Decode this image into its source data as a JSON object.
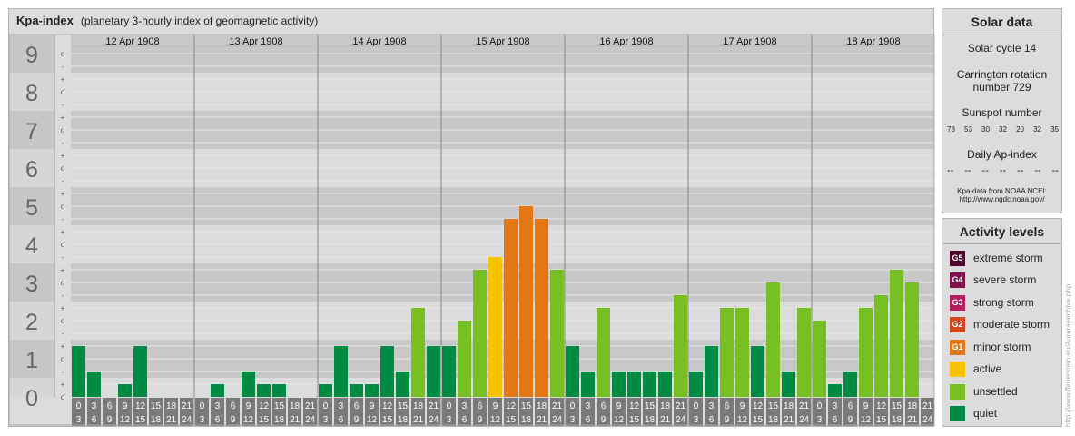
{
  "header": {
    "title": "Kpa-index",
    "subtitle": "(planetary 3-hourly index of geomagnetic activity)"
  },
  "chart_data": {
    "type": "bar",
    "title": "Kpa-index",
    "subtitle": "(planetary 3-hourly index of geomagnetic activity)",
    "ylim": [
      0,
      9
    ],
    "y_ticks": [
      "0",
      "1",
      "2",
      "3",
      "4",
      "5",
      "6",
      "7",
      "8",
      "9"
    ],
    "y_minor_labels": [
      "o",
      "+",
      "-",
      "o"
    ],
    "days": [
      "12 Apr 1908",
      "13 Apr 1908",
      "14 Apr 1908",
      "15 Apr 1908",
      "16 Apr 1908",
      "17 Apr 1908",
      "18 Apr 1908"
    ],
    "interval_start_labels": [
      "0",
      "3",
      "6",
      "9",
      "12",
      "15",
      "18",
      "21"
    ],
    "interval_end_labels": [
      "3",
      "6",
      "9",
      "12",
      "15",
      "18",
      "21",
      "24"
    ],
    "values": [
      1.333,
      0.667,
      0,
      0.333,
      1.333,
      0,
      0,
      0,
      0,
      0.333,
      0,
      0.667,
      0.333,
      0.333,
      0,
      0,
      0.333,
      1.333,
      0.333,
      0.333,
      1.333,
      0.667,
      2.333,
      1.333,
      1.333,
      2.0,
      3.333,
      3.667,
      4.667,
      5.0,
      4.667,
      3.333,
      1.333,
      0.667,
      2.333,
      0.667,
      0.667,
      0.667,
      0.667,
      2.667,
      0.667,
      1.333,
      2.333,
      2.333,
      1.333,
      3.0,
      0.667,
      2.333,
      2.0,
      0.333,
      0.667,
      2.333,
      2.667,
      3.333,
      3.0,
      0
    ],
    "levels": [
      "quiet",
      "quiet",
      "quiet",
      "quiet",
      "quiet",
      "quiet",
      "quiet",
      "quiet",
      "quiet",
      "quiet",
      "quiet",
      "quiet",
      "quiet",
      "quiet",
      "quiet",
      "quiet",
      "quiet",
      "quiet",
      "quiet",
      "quiet",
      "quiet",
      "quiet",
      "unsettled",
      "quiet",
      "quiet",
      "unsettled",
      "unsettled",
      "active",
      "minor",
      "minor",
      "minor",
      "unsettled",
      "quiet",
      "quiet",
      "unsettled",
      "quiet",
      "quiet",
      "quiet",
      "quiet",
      "unsettled",
      "quiet",
      "quiet",
      "unsettled",
      "unsettled",
      "quiet",
      "unsettled",
      "quiet",
      "unsettled",
      "unsettled",
      "quiet",
      "quiet",
      "unsettled",
      "unsettled",
      "unsettled",
      "unsettled",
      "quiet"
    ],
    "colors": {
      "quiet": "#008b45",
      "unsettled": "#77bf22",
      "active": "#f7c200",
      "minor": "#e57614",
      "moderate": "#d2461f",
      "strong": "#b21f5e",
      "severe": "#7f1248",
      "extreme": "#4a0528"
    }
  },
  "solar": {
    "title": "Solar data",
    "cycle": "Solar cycle 14",
    "carrington_line1": "Carrington rotation",
    "carrington_line2": "number 729",
    "sunspot_title": "Sunspot number",
    "sunspots": [
      "78",
      "53",
      "30",
      "32",
      "20",
      "32",
      "35"
    ],
    "ap_title": "Daily Ap-index",
    "ap_values": [
      "--",
      "--",
      "--",
      "--",
      "--",
      "--",
      "--"
    ],
    "source_line1": "Kpa-data from NOAA NCEI:",
    "source_line2": "http://www.ngdc.noaa.gov/"
  },
  "activity": {
    "title": "Activity levels",
    "items": [
      {
        "code": "G5",
        "label": "extreme storm",
        "color": "#4a0528"
      },
      {
        "code": "G4",
        "label": "severe storm",
        "color": "#7f1248"
      },
      {
        "code": "G3",
        "label": "strong storm",
        "color": "#b21f5e"
      },
      {
        "code": "G2",
        "label": "moderate storm",
        "color": "#d2461f"
      },
      {
        "code": "G1",
        "label": "minor storm",
        "color": "#e57614"
      },
      {
        "code": "",
        "label": "active",
        "color": "#f7c200"
      },
      {
        "code": "",
        "label": "unsettled",
        "color": "#77bf22"
      },
      {
        "code": "",
        "label": "quiet",
        "color": "#008b45"
      }
    ]
  },
  "watermark": "http://www.ffeuerstein.eu/Aurora/archive.php"
}
